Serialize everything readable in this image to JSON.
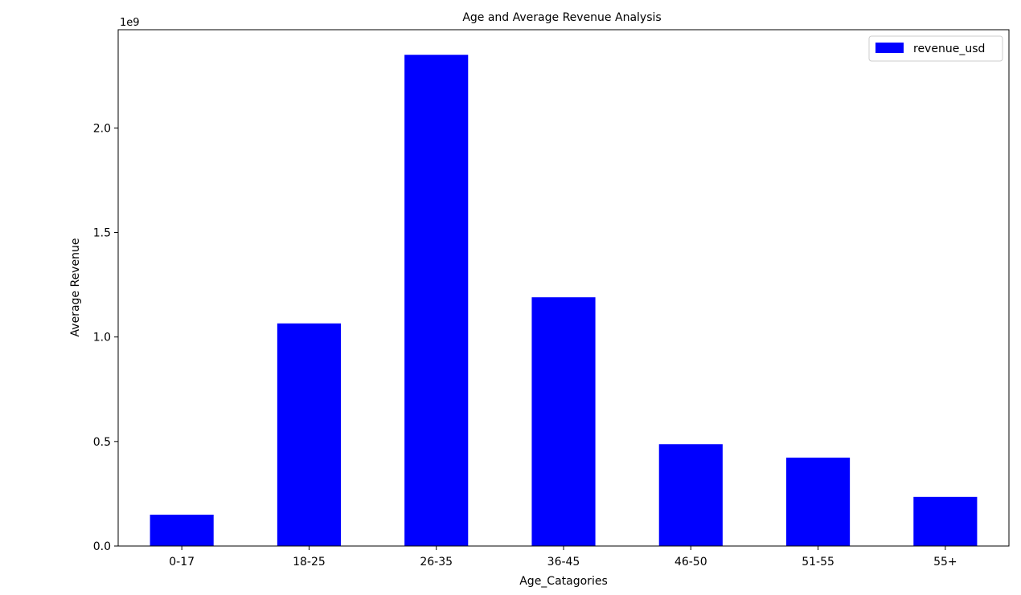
{
  "chart_data": {
    "type": "bar",
    "title": "Age and Average Revenue Analysis",
    "xlabel": "Age_Catagories",
    "ylabel": "Average Revenue",
    "y_offset_label": "1e9",
    "y_scale": 1000000000,
    "categories": [
      "0-17",
      "18-25",
      "26-35",
      "36-45",
      "46-50",
      "51-55",
      "55+"
    ],
    "series": [
      {
        "name": "revenue_usd",
        "color": "#0000ff",
        "values": [
          150000000,
          1065000000,
          2350000000,
          1190000000,
          487000000,
          423000000,
          235000000
        ]
      }
    ],
    "ylim": [
      0,
      2470000000
    ],
    "yticks": [
      0,
      500000000,
      1000000000,
      1500000000,
      2000000000
    ],
    "ytick_labels": [
      "0.0",
      "0.5",
      "1.0",
      "1.5",
      "2.0"
    ],
    "grid": false,
    "legend_position": "top-right"
  }
}
